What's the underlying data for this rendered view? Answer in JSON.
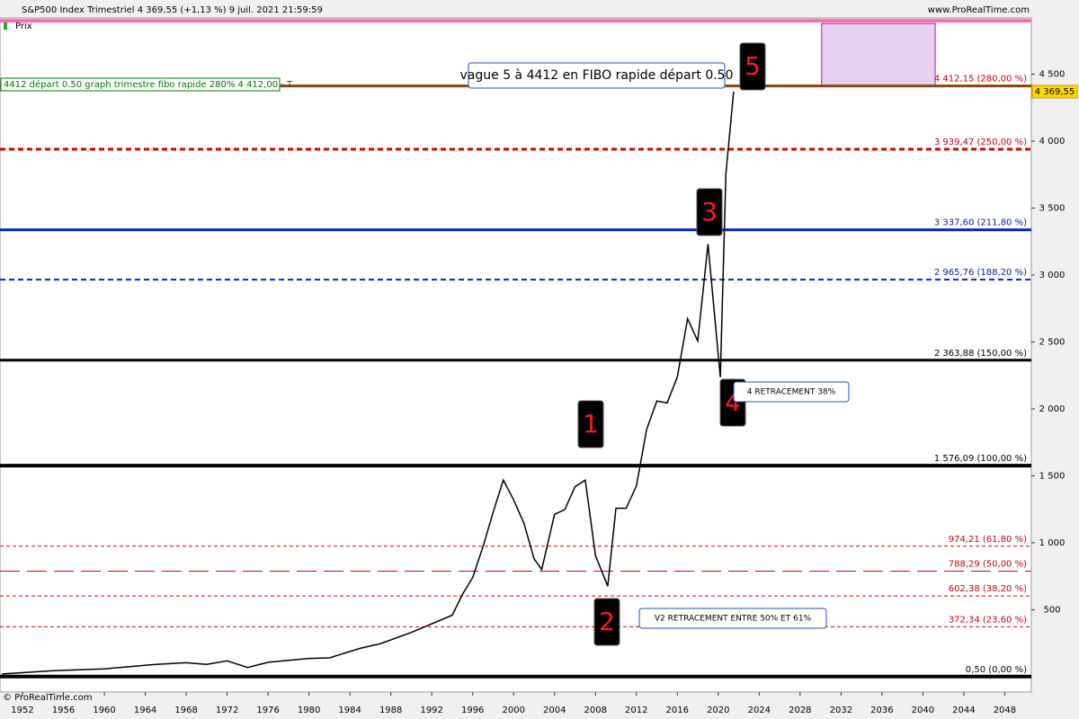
{
  "chart_data": {
    "type": "line",
    "title": "S&P500 Index Trimestriel 4 369,55 (+1,13 %) 9 juil. 2021 21:59:59",
    "legend_label": "Prix",
    "source": "www.ProRealTime.com",
    "copyright": "© ProRealTime.com",
    "color": "#000000",
    "x": [
      1950,
      1955,
      1960,
      1965,
      1968,
      1970,
      1972,
      1974,
      1976,
      1980,
      1982,
      1985,
      1987,
      1990,
      1994,
      1995,
      1996,
      1997,
      1998,
      1999,
      2000,
      2001,
      2002,
      2002.75,
      2004,
      2005,
      2006,
      2007,
      2008,
      2009.2,
      2010,
      2011,
      2012,
      2013,
      2014,
      2015,
      2016,
      2017,
      2018,
      2019,
      2020.2,
      2020.75,
      2021.5
    ],
    "values": [
      20,
      45,
      58,
      92,
      104,
      92,
      118,
      68,
      107,
      136,
      140,
      211,
      247,
      330,
      459,
      615,
      740,
      970,
      1229,
      1469,
      1320,
      1148,
      880,
      800,
      1212,
      1248,
      1418,
      1468,
      903,
      676,
      1258,
      1258,
      1426,
      1848,
      2059,
      2044,
      2239,
      2674,
      2507,
      3231,
      2237,
      3756,
      4369.55
    ],
    "xlim": [
      1949.8,
      2050.6
    ],
    "ylim": [
      -115,
      4920
    ],
    "xticks": [
      1952,
      1956,
      1960,
      1964,
      1968,
      1972,
      1976,
      1980,
      1984,
      1988,
      1992,
      1996,
      2000,
      2004,
      2008,
      2012,
      2016,
      2020,
      2024,
      2028,
      2032,
      2036,
      2040,
      2044,
      2048
    ],
    "yticks": [
      500,
      {
        "value": 1000,
        "label": "1 000"
      },
      {
        "value": 1500,
        "label": "1 500"
      },
      {
        "value": 2000,
        "label": "2 000"
      },
      {
        "value": 2500,
        "label": "2 500"
      },
      {
        "value": 3000,
        "label": "3 000"
      },
      {
        "value": 3500,
        "label": "3 500"
      },
      {
        "value": 4000,
        "label": "4 000"
      },
      {
        "value": 4500,
        "label": "4 500"
      }
    ],
    "levels": [
      {
        "value": 4899,
        "color": "#ff69b4",
        "style": "solid",
        "width": 4
      },
      {
        "value": 4412.15,
        "label": "4 412,15 (280,00 %)",
        "color": "#8b4513",
        "text_color": "#cc0000",
        "style": "solid",
        "width": 3
      },
      {
        "value": 3939.47,
        "label": "3 939,47 (250,00 %)",
        "color": "#dd0000",
        "text_color": "#cc0000",
        "style": "dotted",
        "width": 3
      },
      {
        "value": 3337.6,
        "label": "3 337,60 (211,80 %)",
        "color": "#0022bb",
        "text_color": "#0022bb",
        "style": "solid",
        "width": 3
      },
      {
        "value": 2965.76,
        "label": "2 965,76 (188,20 %)",
        "color": "#0022dd",
        "text_color": "#0022bb",
        "style": "dotted",
        "width": 2
      },
      {
        "value": 2363.88,
        "label": "2 363,88 (150,00 %)",
        "color": "#000000",
        "text_color": "#000000",
        "style": "solid",
        "width": 3
      },
      {
        "value": 1576.09,
        "label": "1 576,09 (100,00 %)",
        "color": "#000000",
        "text_color": "#000000",
        "style": "solid",
        "width": 4
      },
      {
        "value": 974.21,
        "label": "974,21 (61,80 %)",
        "color": "#dd0000",
        "text_color": "#cc0000",
        "style": "dashed",
        "width": 1
      },
      {
        "value": 788.29,
        "label": "788,29 (50,00 %)",
        "color": "#dd0000",
        "text_color": "#cc0000",
        "style": "longdash",
        "width": 1
      },
      {
        "value": 602.38,
        "label": "602,38 (38,20 %)",
        "color": "#dd0000",
        "text_color": "#cc0000",
        "style": "dashed",
        "width": 1
      },
      {
        "value": 372.34,
        "label": "372,34 (23,60 %)",
        "color": "#dd0000",
        "text_color": "#cc0000",
        "style": "dashed",
        "width": 1
      },
      {
        "value": 0.5,
        "label": "0,50 (0,00 %)",
        "color": "#000000",
        "text_color": "#000000",
        "style": "solid",
        "width": 4
      }
    ],
    "zone": {
      "x": [
        2030.1,
        2041.2
      ],
      "y": [
        4412.15,
        4878
      ],
      "color": "#e8d0f0"
    },
    "last_price": {
      "value": 4369.55,
      "label": "4 369,55"
    },
    "order_label": "4412 départ 0.50 graph trimestre fibo rapide 280%  4 412,00 - T",
    "annotations": [
      {
        "text": "vague 5 à 4412 en FIBO rapide départ 0.50",
        "kind": "note"
      },
      {
        "text": "5",
        "kind": "wave"
      },
      {
        "text": "3",
        "kind": "wave"
      },
      {
        "text": "4",
        "kind": "wave"
      },
      {
        "text": "4 RETRACEMENT 38%",
        "kind": "note"
      },
      {
        "text": "1",
        "kind": "wave"
      },
      {
        "text": "2",
        "kind": "wave"
      },
      {
        "text": "V2 RETRACEMENT ENTRE 50% ET 61%",
        "kind": "note"
      }
    ]
  }
}
